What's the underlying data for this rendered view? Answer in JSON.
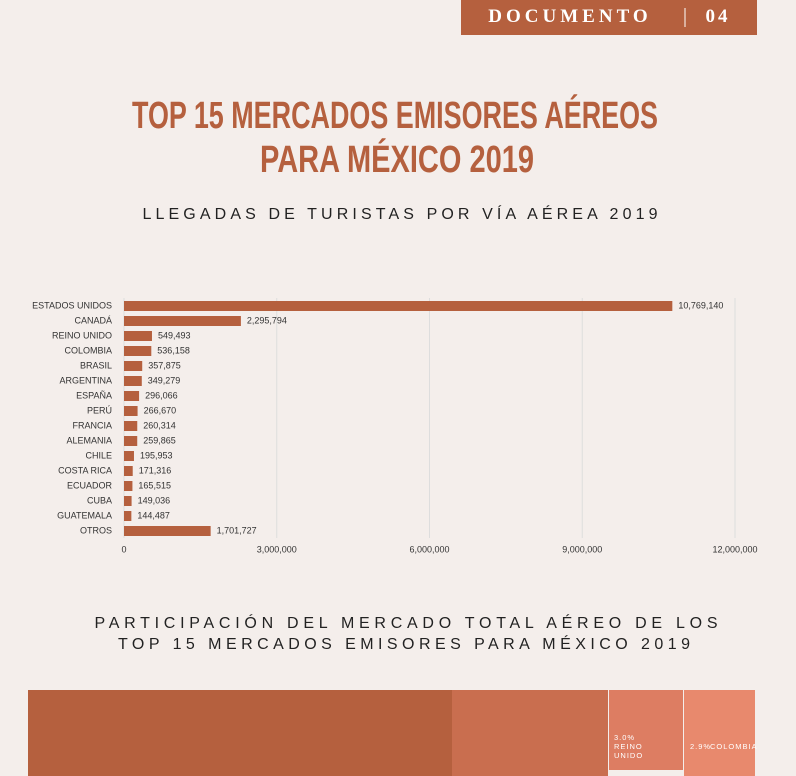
{
  "header": {
    "label": "DOCUMENTO",
    "number": "04"
  },
  "title": [
    "TOP 15 MERCADOS EMISORES AÉREOS",
    "PARA MÉXICO 2019"
  ],
  "chart_data": {
    "type": "bar",
    "orientation": "horizontal",
    "subtitle": "LLEGADAS DE TURISTAS POR VÍA AÉREA 2019",
    "categories": [
      "ESTADOS UNIDOS",
      "CANADÁ",
      "REINO UNIDO",
      "COLOMBIA",
      "BRASIL",
      "ARGENTINA",
      "ESPAÑA",
      "PERÚ",
      "FRANCIA",
      "ALEMANIA",
      "CHILE",
      "COSTA RICA",
      "ECUADOR",
      "CUBA",
      "GUATEMALA",
      "OTROS"
    ],
    "values": [
      10769140,
      2295794,
      549493,
      536158,
      357875,
      349279,
      296066,
      266670,
      260314,
      259865,
      195953,
      171316,
      165515,
      149036,
      144487,
      1701727
    ],
    "value_labels": [
      "10,769,140",
      "2,295,794",
      "549,493",
      "536,158",
      "357,875",
      "349,279",
      "296,066",
      "266,670",
      "260,314",
      "259,865",
      "195,953",
      "171,316",
      "165,515",
      "149,036",
      "144,487",
      "1,701,727"
    ],
    "color": "#b5603e",
    "xlim": [
      0,
      12000000
    ],
    "xticks": [
      0,
      {
        "value": 3000000,
        "label": "3,000,000"
      },
      {
        "value": 6000000,
        "label": "6,000,000"
      },
      {
        "value": 9000000,
        "label": "9,000,000"
      },
      {
        "value": 12000000,
        "label": "12,000,000"
      }
    ],
    "grid": true
  },
  "section": {
    "title": [
      "PARTICIPACIÓN DEL MERCADO TOTAL AÉREO DE LOS",
      "TOP 15 MERCADOS EMISORES PARA MÉXICO 2019"
    ],
    "tiles": [
      {
        "value": 3.0,
        "label": "3.0%",
        "name": [
          "REINO",
          "UNIDO"
        ]
      },
      {
        "value": 2.9,
        "label": "2.9%",
        "name": [
          "COLOMBIA"
        ]
      }
    ]
  }
}
